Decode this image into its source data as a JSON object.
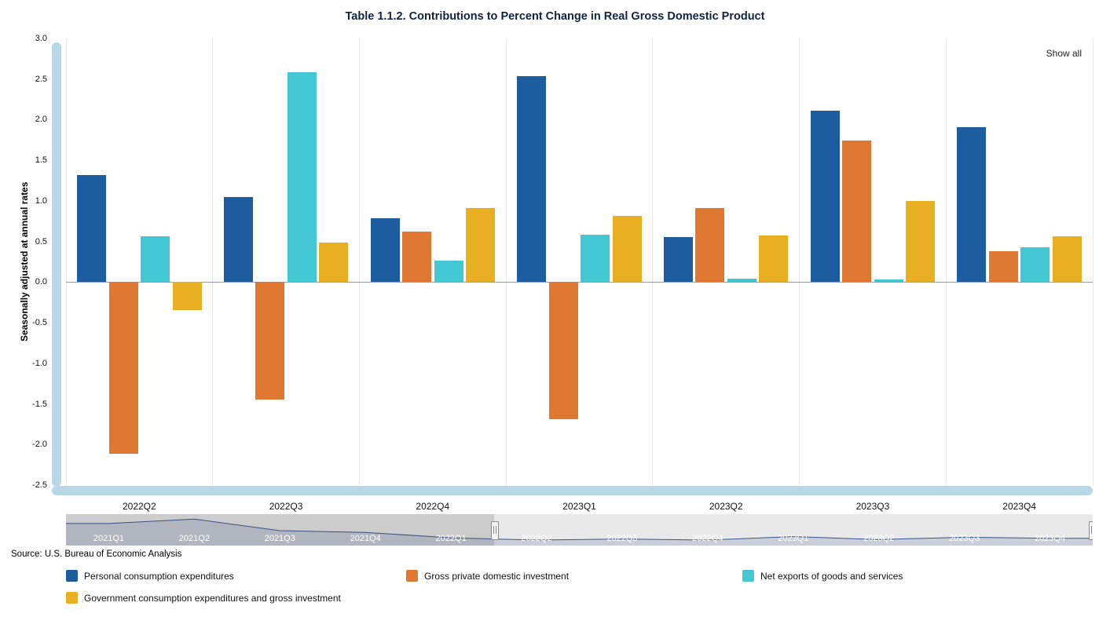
{
  "title": "Table 1.1.2. Contributions to Percent Change in Real Gross Domestic Product",
  "show_all_label": "Show all",
  "source": "Source: U.S. Bureau of Economic Analysis",
  "y_axis": {
    "title": "Seasonally adjusted at annual rates",
    "tick_labels": [
      "3.0",
      "2.5",
      "2.0",
      "1.5",
      "1.0",
      "0.5",
      "0.0",
      "-0.5",
      "-1.0",
      "-1.5",
      "-2.0",
      "-2.5"
    ]
  },
  "chart_data": {
    "type": "bar",
    "title": "Table 1.1.2. Contributions to Percent Change in Real Gross Domestic Product",
    "categories": [
      "2022Q2",
      "2022Q3",
      "2022Q4",
      "2023Q1",
      "2023Q2",
      "2023Q3",
      "2023Q4"
    ],
    "series": [
      {
        "id": "pce",
        "name": "Personal consumption expenditures",
        "color": "#1c5c9f",
        "values": [
          1.32,
          1.05,
          0.79,
          2.54,
          0.55,
          2.11,
          1.91
        ]
      },
      {
        "id": "investment",
        "name": "Gross private domestic investment",
        "color": "#de7833",
        "values": [
          -2.11,
          -1.45,
          0.62,
          -1.69,
          0.91,
          1.74,
          0.38
        ]
      },
      {
        "id": "net-exports",
        "name": "Net exports of goods and services",
        "color": "#43c7d2",
        "values": [
          0.56,
          2.58,
          0.26,
          0.58,
          0.04,
          0.03,
          0.43
        ]
      },
      {
        "id": "government",
        "name": "Government consumption expenditures and gross investment",
        "color": "#e9af23",
        "values": [
          -0.34,
          0.49,
          0.91,
          0.82,
          0.57,
          1.0,
          0.56
        ]
      }
    ],
    "xlabel": "",
    "ylabel": "Seasonally adjusted at annual rates",
    "ylim": [
      -2.5,
      3.0
    ],
    "ytick_step": 0.5,
    "grid": "vertical",
    "legend_position": "bottom"
  },
  "navigator": {
    "quarters": [
      "2021Q1",
      "2021Q2",
      "2021Q3",
      "2021Q4",
      "2022Q1",
      "2022Q2",
      "2022Q3",
      "2022Q4",
      "2023Q1",
      "2023Q2",
      "2023Q3",
      "2023Q4"
    ],
    "line_values": [
      1.15,
      1.4,
      0.75,
      0.65,
      0.35,
      0.22,
      0.28,
      0.22,
      0.42,
      0.25,
      0.38,
      0.32
    ],
    "selected_start": "2022Q2",
    "selected_end": "2023Q4"
  },
  "colors": {
    "scrollbar": "#b9d8e7",
    "navigator_line": "#39558f",
    "navigator_fill": "rgba(57,85,143,0.18)",
    "gridline": "#e9e9e9",
    "zero_line": "#9b9b9b"
  }
}
